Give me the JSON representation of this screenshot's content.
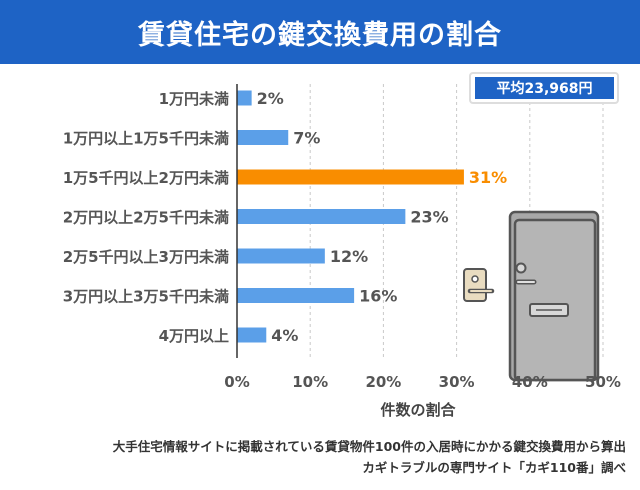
{
  "title": "賃貸住宅の鍵交換費用の割合",
  "average_label": "平均23,968円",
  "source_line1": "大手住宅情報サイトに掲載されている賃貸物件100件の入居時にかかる鍵交換費用から算出",
  "source_line2": "カギトラブルの専門サイト「カギ110番」調べ",
  "colors": {
    "bar": "#5b9fe8",
    "highlight": "#f98d00",
    "title_bg": "#1e63c5",
    "badge_bg": "#1e63c5"
  },
  "chart_data": {
    "type": "bar",
    "orientation": "horizontal",
    "categories": [
      "1万円未満",
      "1万円以上1万5千円未満",
      "1万5千円以上2万円未満",
      "2万円以上2万5千円未満",
      "2万5千円以上3万円未満",
      "3万円以上3万5千円未満",
      "4万円以上"
    ],
    "values": [
      2,
      7,
      31,
      23,
      12,
      16,
      4
    ],
    "value_labels": [
      "2%",
      "7%",
      "31%",
      "23%",
      "12%",
      "16%",
      "4%"
    ],
    "highlight_index": 2,
    "xlabel": "件数の割合",
    "xlim": [
      0,
      50
    ],
    "x_ticks": [
      0,
      10,
      20,
      30,
      40,
      50
    ],
    "x_tick_labels": [
      "0%",
      "10%",
      "20%",
      "30%",
      "40%",
      "50%"
    ],
    "grid": "vertical dashed"
  }
}
